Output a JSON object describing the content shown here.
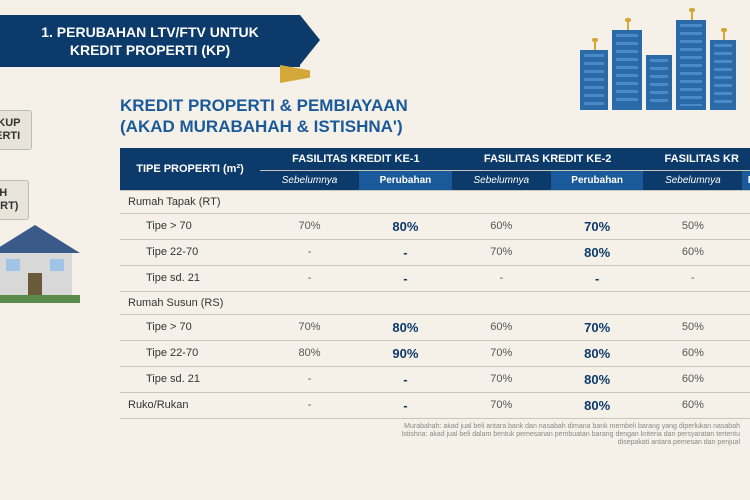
{
  "banner": {
    "line1": "1. PERUBAHAN LTV/FTV UNTUK",
    "line2": "KREDIT PROPERTI (KP)"
  },
  "side_labels": {
    "sl1_l1": "LINGKUP",
    "sl1_l2": "ROPERTI",
    "sl2_l1": "MAH",
    "sl2_l2": "PAK (RT)"
  },
  "heading": {
    "l1": "KREDIT PROPERTI & PEMBIAYAAN",
    "l2": "(AKAD MURABAHAH & ISTISHNA')"
  },
  "table": {
    "col_type": "TIPE PROPERTI (m²)",
    "facilities": [
      "FASILITAS KREDIT KE-1",
      "FASILITAS KREDIT KE-2",
      "FASILITAS KR"
    ],
    "sub_before": "Sebelumnya",
    "sub_change": "Perubahan",
    "rows": [
      {
        "label": "Rumah Tapak (RT)",
        "group": true,
        "cells": [
          "",
          "",
          "",
          "",
          "",
          ""
        ]
      },
      {
        "label": "Tipe > 70",
        "indent": true,
        "cells": [
          "70%",
          "80%",
          "60%",
          "70%",
          "50%",
          ""
        ]
      },
      {
        "label": "Tipe 22-70",
        "indent": true,
        "cells": [
          "-",
          "-",
          "70%",
          "80%",
          "60%",
          ""
        ]
      },
      {
        "label": "Tipe sd. 21",
        "indent": true,
        "cells": [
          "-",
          "-",
          "-",
          "-",
          "-",
          ""
        ]
      },
      {
        "label": "Rumah Susun (RS)",
        "group": true,
        "cells": [
          "",
          "",
          "",
          "",
          "",
          ""
        ]
      },
      {
        "label": "Tipe > 70",
        "indent": true,
        "cells": [
          "70%",
          "80%",
          "60%",
          "70%",
          "50%",
          ""
        ]
      },
      {
        "label": "Tipe 22-70",
        "indent": true,
        "cells": [
          "80%",
          "90%",
          "70%",
          "80%",
          "60%",
          ""
        ]
      },
      {
        "label": "Tipe sd. 21",
        "indent": true,
        "cells": [
          "-",
          "-",
          "70%",
          "80%",
          "60%",
          ""
        ]
      },
      {
        "label": "Ruko/Rukan",
        "group": false,
        "cells": [
          "-",
          "-",
          "70%",
          "80%",
          "60%",
          ""
        ]
      }
    ]
  },
  "footnote": {
    "l1": "Murabahah: akad jual beli antara bank dan nasabah dimana bank membeli barang yang diperlukan nasabah",
    "l2": "Istishna: akad jual beli dalam bentuk pemesanan pembuatan barang dengan kriteria dan persyaratan tertentu",
    "l3": "disepakati antara pemesan dan penjual"
  },
  "colors": {
    "header_bg": "#0b3a6b",
    "accent": "#1a5a9a",
    "gold": "#d4a838",
    "page_bg": "#f5f1e8"
  }
}
